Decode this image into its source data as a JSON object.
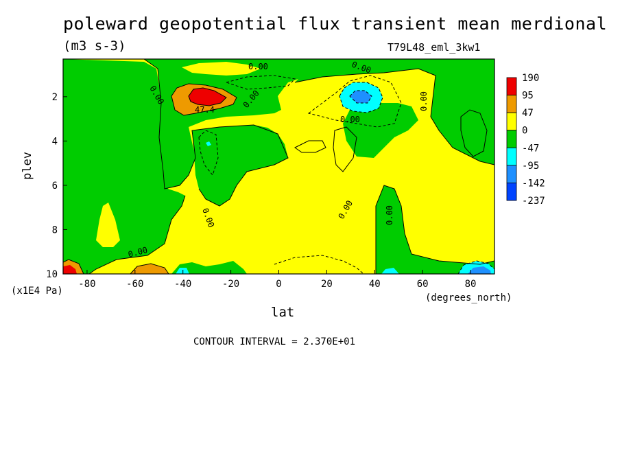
{
  "chart_data": {
    "type": "heatmap",
    "title": "poleward geopotential flux transient mean merdional",
    "units": "(m3 s-3)",
    "run_label": "T79L48_eml_3kw1",
    "xlabel": "lat",
    "x_units": "(degrees_north)",
    "ylabel": "plev",
    "y_units": "(x1E4 Pa)",
    "xlim": [
      -90,
      90
    ],
    "ylim": [
      10,
      0.3
    ],
    "x_ticks": [
      "-80",
      "-60",
      "-40",
      "-20",
      "0",
      "20",
      "40",
      "60",
      "80"
    ],
    "x_tick_values": [
      -80,
      -60,
      -40,
      -20,
      0,
      20,
      40,
      60,
      80
    ],
    "y_ticks": [
      "2",
      "4",
      "6",
      "8",
      "10"
    ],
    "y_tick_values": [
      2,
      4,
      6,
      8,
      10
    ],
    "contour_interval": "CONTOUR INTERVAL = 2.370E+01",
    "contour_labels": [
      "0.00",
      "0.00",
      "0.00",
      "0.00",
      "0.00",
      "0.00",
      "0.00",
      "0.00",
      "0.00",
      "0.00",
      "47.4"
    ],
    "colorbar": {
      "levels": [
        "190",
        "95",
        "47",
        "0",
        "-47",
        "-95",
        "-142",
        "-237"
      ],
      "colors": [
        "#ee0000",
        "#ee9a00",
        "#ffff00",
        "#00cc00",
        "#00ffff",
        "#1e90ff",
        "#0044ff"
      ]
    },
    "color_map": {
      "strong_positive": "#ee0000",
      "positive": "#ee9a00",
      "weak_positive": "#ffff00",
      "weak_negative": "#00cc00",
      "negative": "#00ffff",
      "more_negative": "#1e90ff",
      "strong_negative": "#0044ff"
    }
  }
}
